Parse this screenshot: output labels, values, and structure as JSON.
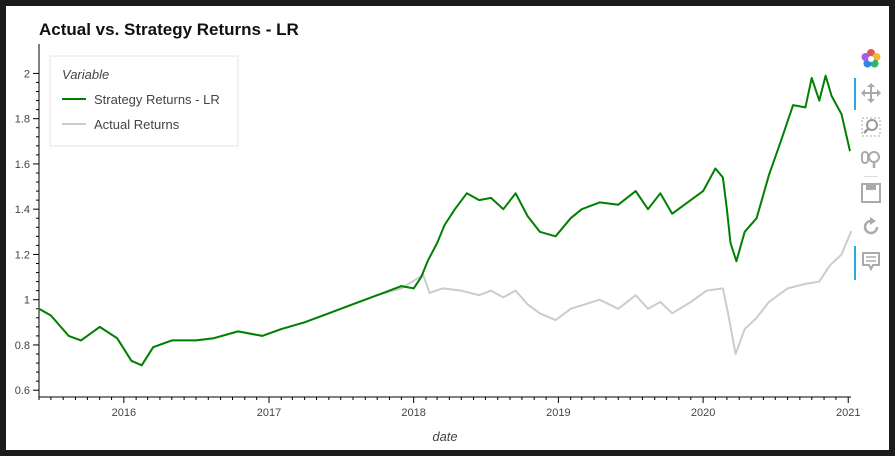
{
  "chart_data": {
    "type": "line",
    "title": "Actual vs. Strategy Returns - LR",
    "xlabel": "date",
    "ylabel": "",
    "x_range": [
      "2015-06-01",
      "2021-01-08"
    ],
    "ylim": [
      0.57,
      2.13
    ],
    "x_ticks": [
      "2016",
      "2017",
      "2018",
      "2019",
      "2020",
      "2021"
    ],
    "y_ticks": [
      "0.6",
      "0.8",
      "1",
      "1.2",
      "1.4",
      "1.6",
      "1.8",
      "2"
    ],
    "grid": false,
    "legend": {
      "title": "Variable",
      "placement": "top-left",
      "entries": [
        "Strategy Returns - LR",
        "Actual Returns"
      ]
    },
    "series": [
      {
        "name": "Strategy Returns - LR",
        "color": "#008000",
        "points": [
          [
            "2015-06-01",
            0.96
          ],
          [
            "2015-07-01",
            0.93
          ],
          [
            "2015-08-15",
            0.84
          ],
          [
            "2015-09-15",
            0.82
          ],
          [
            "2015-11-01",
            0.88
          ],
          [
            "2015-12-15",
            0.83
          ],
          [
            "2016-01-20",
            0.73
          ],
          [
            "2016-02-15",
            0.71
          ],
          [
            "2016-03-15",
            0.79
          ],
          [
            "2016-05-01",
            0.82
          ],
          [
            "2016-07-01",
            0.82
          ],
          [
            "2016-08-15",
            0.83
          ],
          [
            "2016-10-15",
            0.86
          ],
          [
            "2016-12-15",
            0.84
          ],
          [
            "2017-02-01",
            0.87
          ],
          [
            "2017-04-01",
            0.9
          ],
          [
            "2017-06-01",
            0.94
          ],
          [
            "2017-08-01",
            0.98
          ],
          [
            "2017-10-01",
            1.02
          ],
          [
            "2017-12-01",
            1.06
          ],
          [
            "2018-01-01",
            1.05
          ],
          [
            "2018-01-20",
            1.1
          ],
          [
            "2018-02-05",
            1.17
          ],
          [
            "2018-03-01",
            1.25
          ],
          [
            "2018-03-20",
            1.33
          ],
          [
            "2018-04-15",
            1.4
          ],
          [
            "2018-05-15",
            1.47
          ],
          [
            "2018-06-15",
            1.44
          ],
          [
            "2018-07-15",
            1.45
          ],
          [
            "2018-08-15",
            1.4
          ],
          [
            "2018-09-15",
            1.47
          ],
          [
            "2018-10-15",
            1.37
          ],
          [
            "2018-11-15",
            1.3
          ],
          [
            "2018-12-25",
            1.28
          ],
          [
            "2019-02-01",
            1.36
          ],
          [
            "2019-03-01",
            1.4
          ],
          [
            "2019-04-15",
            1.43
          ],
          [
            "2019-06-01",
            1.42
          ],
          [
            "2019-07-15",
            1.48
          ],
          [
            "2019-08-15",
            1.4
          ],
          [
            "2019-09-15",
            1.47
          ],
          [
            "2019-10-15",
            1.38
          ],
          [
            "2019-12-01",
            1.44
          ],
          [
            "2020-01-01",
            1.48
          ],
          [
            "2020-02-01",
            1.58
          ],
          [
            "2020-02-20",
            1.54
          ],
          [
            "2020-03-01",
            1.4
          ],
          [
            "2020-03-10",
            1.25
          ],
          [
            "2020-03-25",
            1.17
          ],
          [
            "2020-04-15",
            1.3
          ],
          [
            "2020-05-15",
            1.36
          ],
          [
            "2020-06-15",
            1.55
          ],
          [
            "2020-07-15",
            1.7
          ],
          [
            "2020-08-15",
            1.86
          ],
          [
            "2020-09-15",
            1.85
          ],
          [
            "2020-10-01",
            1.98
          ],
          [
            "2020-10-20",
            1.88
          ],
          [
            "2020-11-05",
            1.99
          ],
          [
            "2020-11-20",
            1.9
          ],
          [
            "2020-12-15",
            1.82
          ],
          [
            "2021-01-05",
            1.66
          ]
        ]
      },
      {
        "name": "Actual Returns",
        "color": "#cccccc",
        "points": [
          [
            "2015-06-01",
            0.96
          ],
          [
            "2015-07-01",
            0.93
          ],
          [
            "2015-08-15",
            0.84
          ],
          [
            "2015-09-15",
            0.82
          ],
          [
            "2015-11-01",
            0.88
          ],
          [
            "2015-12-15",
            0.83
          ],
          [
            "2016-01-20",
            0.73
          ],
          [
            "2016-02-15",
            0.71
          ],
          [
            "2016-03-15",
            0.79
          ],
          [
            "2016-05-01",
            0.82
          ],
          [
            "2016-07-01",
            0.82
          ],
          [
            "2016-08-15",
            0.83
          ],
          [
            "2016-10-15",
            0.86
          ],
          [
            "2016-12-15",
            0.84
          ],
          [
            "2017-02-01",
            0.87
          ],
          [
            "2017-04-01",
            0.9
          ],
          [
            "2017-06-01",
            0.94
          ],
          [
            "2017-08-01",
            0.98
          ],
          [
            "2017-10-01",
            1.02
          ],
          [
            "2017-12-01",
            1.05
          ],
          [
            "2018-01-25",
            1.11
          ],
          [
            "2018-02-10",
            1.03
          ],
          [
            "2018-03-15",
            1.05
          ],
          [
            "2018-05-01",
            1.04
          ],
          [
            "2018-06-15",
            1.02
          ],
          [
            "2018-07-15",
            1.04
          ],
          [
            "2018-08-15",
            1.01
          ],
          [
            "2018-09-15",
            1.04
          ],
          [
            "2018-10-15",
            0.98
          ],
          [
            "2018-11-15",
            0.94
          ],
          [
            "2018-12-25",
            0.91
          ],
          [
            "2019-02-01",
            0.96
          ],
          [
            "2019-04-15",
            1.0
          ],
          [
            "2019-06-01",
            0.96
          ],
          [
            "2019-07-15",
            1.02
          ],
          [
            "2019-08-15",
            0.96
          ],
          [
            "2019-09-15",
            0.99
          ],
          [
            "2019-10-15",
            0.94
          ],
          [
            "2019-12-01",
            0.99
          ],
          [
            "2020-01-10",
            1.04
          ],
          [
            "2020-02-20",
            1.05
          ],
          [
            "2020-03-05",
            0.93
          ],
          [
            "2020-03-23",
            0.76
          ],
          [
            "2020-04-15",
            0.87
          ],
          [
            "2020-05-15",
            0.92
          ],
          [
            "2020-06-15",
            0.99
          ],
          [
            "2020-08-01",
            1.05
          ],
          [
            "2020-09-15",
            1.07
          ],
          [
            "2020-10-20",
            1.08
          ],
          [
            "2020-11-15",
            1.15
          ],
          [
            "2020-12-15",
            1.2
          ],
          [
            "2021-01-08",
            1.3
          ]
        ]
      }
    ]
  },
  "toolbar": {
    "tools": [
      {
        "icon": "bokeh-logo-icon"
      },
      {
        "icon": "pan-icon"
      },
      {
        "icon": "box-zoom-icon"
      },
      {
        "icon": "wheel-zoom-icon"
      },
      {
        "icon": "save-icon"
      },
      {
        "icon": "reset-icon"
      },
      {
        "icon": "hover-icon"
      }
    ]
  }
}
